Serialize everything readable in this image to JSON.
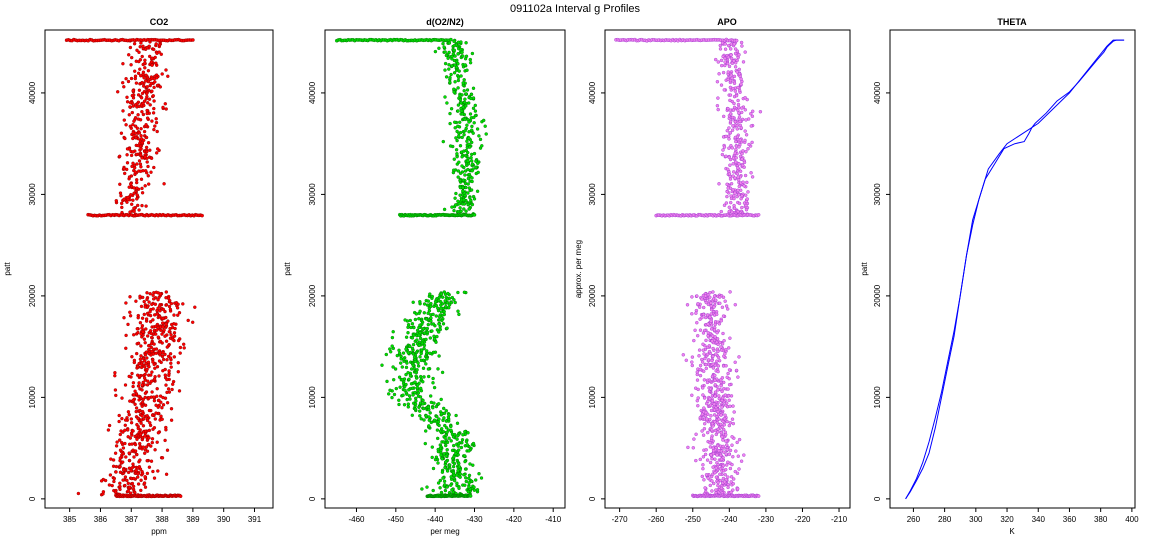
{
  "figure": {
    "title": "091102a   Interval g Profiles"
  },
  "chart_data": [
    {
      "type": "scatter",
      "title": "CO2",
      "xlabel": "ppm",
      "ylabel": "patt",
      "xlim": [
        384.2,
        391.6
      ],
      "ylim": [
        -900,
        46200
      ],
      "xticks": [
        385,
        386,
        387,
        388,
        389,
        390,
        391
      ],
      "yticks": [
        0,
        10000,
        20000,
        30000,
        40000
      ],
      "color": "#ff0000",
      "stroke": "#800000",
      "segments": [
        {
          "y": [
            300,
            20400
          ],
          "center": [
            [
              0,
              386.7
            ],
            [
              0.35,
              387.3
            ],
            [
              0.7,
              387.8
            ],
            [
              1,
              387.9
            ]
          ],
          "spread": 0.75,
          "n": 650
        },
        {
          "y": [
            27900,
            45200
          ],
          "center": [
            [
              0,
              387.0
            ],
            [
              0.5,
              387.3
            ],
            [
              1,
              387.6
            ]
          ],
          "spread": 0.55,
          "n": 360
        }
      ],
      "bands": [
        {
          "y": 300,
          "x": [
            386.5,
            388.6
          ]
        },
        {
          "y": 27950,
          "x": [
            385.6,
            389.3
          ]
        },
        {
          "y": 45200,
          "x": [
            384.9,
            389.0
          ]
        }
      ]
    },
    {
      "type": "scatter",
      "title": "d(O2/N2)",
      "xlabel": "per meg",
      "ylabel": "patt",
      "xlim": [
        -468,
        -407
      ],
      "ylim": [
        -900,
        46200
      ],
      "xticks": [
        -460,
        -450,
        -440,
        -430,
        -420,
        -410
      ],
      "yticks": [
        0,
        10000,
        20000,
        30000,
        40000
      ],
      "color": "#00e000",
      "stroke": "#006400",
      "segments": [
        {
          "y": [
            300,
            20400
          ],
          "center": [
            [
              0,
              -434
            ],
            [
              0.3,
              -436
            ],
            [
              0.5,
              -446
            ],
            [
              0.75,
              -445
            ],
            [
              1,
              -438
            ]
          ],
          "spread": 5.0,
          "n": 650
        },
        {
          "y": [
            27900,
            45200
          ],
          "center": [
            [
              0,
              -433
            ],
            [
              0.5,
              -432
            ],
            [
              1,
              -436
            ]
          ],
          "spread": 3.5,
          "n": 360
        }
      ],
      "bands": [
        {
          "y": 300,
          "x": [
            -442,
            -431
          ]
        },
        {
          "y": 27950,
          "x": [
            -449,
            -430
          ]
        },
        {
          "y": 45200,
          "x": [
            -465,
            -436
          ]
        }
      ]
    },
    {
      "type": "scatter",
      "title": "APO",
      "xlabel": "",
      "ylabel": "approx. per meg",
      "xlim": [
        -274,
        -207
      ],
      "ylim": [
        -900,
        46200
      ],
      "xticks": [
        -270,
        -260,
        -250,
        -240,
        -230,
        -220,
        -210
      ],
      "yticks": [
        0,
        10000,
        20000,
        30000,
        40000
      ],
      "color": "#ee82ee",
      "stroke": "#9932cc",
      "segments": [
        {
          "y": [
            300,
            20400
          ],
          "center": [
            [
              0,
              -242
            ],
            [
              0.5,
              -244
            ],
            [
              1,
              -245
            ]
          ],
          "spread": 4.5,
          "n": 650
        },
        {
          "y": [
            27900,
            45200
          ],
          "center": [
            [
              0,
              -238
            ],
            [
              0.5,
              -238
            ],
            [
              1,
              -240
            ]
          ],
          "spread": 3.5,
          "n": 360
        }
      ],
      "bands": [
        {
          "y": 300,
          "x": [
            -250,
            -232
          ]
        },
        {
          "y": 27950,
          "x": [
            -260,
            -232
          ]
        },
        {
          "y": 45200,
          "x": [
            -271,
            -238
          ]
        }
      ]
    },
    {
      "type": "line",
      "title": "THETA",
      "xlabel": "K",
      "ylabel": "patt",
      "xlim": [
        245,
        402
      ],
      "ylim": [
        -900,
        46200
      ],
      "xticks": [
        260,
        280,
        300,
        320,
        340,
        360,
        380,
        400
      ],
      "yticks": [
        0,
        10000,
        20000,
        30000,
        40000
      ],
      "color": "#0000ff",
      "up": {
        "x": [
          255,
          258,
          262,
          266,
          270,
          274,
          278,
          282,
          286,
          290,
          294,
          298,
          302,
          306,
          312,
          318,
          325,
          331,
          334,
          336,
          338,
          345,
          352,
          360,
          366,
          372,
          378,
          382,
          384,
          386,
          388,
          390,
          395
        ],
        "y": [
          0,
          800,
          2000,
          3600,
          5600,
          8000,
          10500,
          13500,
          16500,
          20000,
          24000,
          27500,
          29500,
          31500,
          33000,
          34500,
          35000,
          35200,
          36000,
          36600,
          37000,
          38000,
          39200,
          40100,
          41100,
          42200,
          43300,
          44000,
          44500,
          44800,
          45100,
          45200,
          45200
        ]
      },
      "down": {
        "x": [
          395,
          388,
          384,
          360,
          340,
          320,
          315,
          308,
          302,
          298,
          294,
          290,
          286,
          282,
          278,
          274,
          270,
          266,
          262,
          258,
          255
        ],
        "y": [
          45200,
          45200,
          44600,
          40000,
          37000,
          35000,
          34000,
          32500,
          29500,
          27000,
          24000,
          20000,
          16000,
          13000,
          10000,
          7000,
          4500,
          3000,
          1800,
          700,
          0
        ]
      }
    }
  ]
}
